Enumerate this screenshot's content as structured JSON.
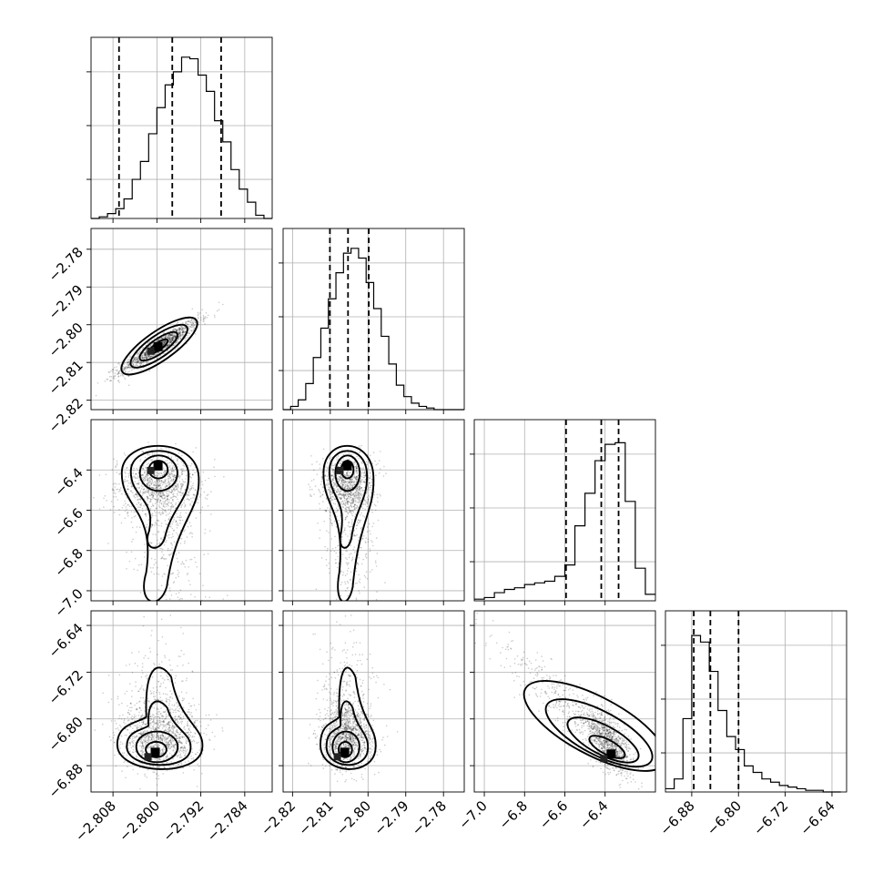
{
  "chart_data": {
    "type": "corner",
    "title": "",
    "parameters": [
      {
        "label": "",
        "range": [
          -2.812,
          -2.779
        ],
        "ticks": [
          -2.808,
          -2.8,
          -2.792,
          -2.784
        ],
        "tick_labels": [
          "−2.808",
          "−2.800",
          "−2.792",
          "−2.784"
        ],
        "quantiles": [
          -2.8069,
          -2.7972,
          -2.7883
        ],
        "hist_bins": [
          -2.812,
          -2.8105,
          -2.809,
          -2.8075,
          -2.806,
          -2.8045,
          -2.803,
          -2.8015,
          -2.8,
          -2.7985,
          -2.797,
          -2.7955,
          -2.794,
          -2.7925,
          -2.791,
          -2.7895,
          -2.788,
          -2.7865,
          -2.785,
          -2.7835,
          -2.782,
          -2.7805,
          -2.779
        ],
        "hist_counts": [
          0.0,
          0.01,
          0.03,
          0.06,
          0.12,
          0.24,
          0.35,
          0.52,
          0.68,
          0.82,
          0.9,
          0.99,
          0.98,
          0.88,
          0.78,
          0.6,
          0.47,
          0.3,
          0.18,
          0.1,
          0.02,
          0.0
        ]
      },
      {
        "label": "",
        "range": [
          -2.8225,
          -2.7745
        ],
        "ticks": [
          -2.82,
          -2.81,
          -2.8,
          -2.79,
          -2.78
        ],
        "tick_labels": [
          "−2.82",
          "−2.81",
          "−2.80",
          "−2.79",
          "−2.78"
        ],
        "quantiles": [
          -2.8101,
          -2.8053,
          -2.7998
        ],
        "hist_bins": [
          -2.8225,
          -2.8205,
          -2.8185,
          -2.8165,
          -2.8145,
          -2.8125,
          -2.8105,
          -2.8085,
          -2.8065,
          -2.8045,
          -2.8025,
          -2.8005,
          -2.7985,
          -2.7965,
          -2.7945,
          -2.7925,
          -2.7905,
          -2.7885,
          -2.7865,
          -2.7845,
          -2.7825,
          -2.7805,
          -2.7785,
          -2.7765,
          -2.7745
        ],
        "hist_counts": [
          0.0,
          0.02,
          0.06,
          0.16,
          0.32,
          0.5,
          0.68,
          0.84,
          0.96,
          0.99,
          0.93,
          0.78,
          0.62,
          0.45,
          0.28,
          0.15,
          0.08,
          0.04,
          0.02,
          0.01,
          0.0,
          0.0,
          0.0,
          0.0
        ]
      },
      {
        "label": "",
        "range": [
          -7.05,
          -6.15
        ],
        "ticks": [
          -7.0,
          -6.8,
          -6.6,
          -6.4
        ],
        "tick_labels": [
          "−7.0",
          "−6.8",
          "−6.6",
          "−6.4"
        ],
        "quantiles": [
          -6.594,
          -6.419,
          -6.333
        ],
        "hist_bins": [
          -7.05,
          -7.0,
          -6.95,
          -6.9,
          -6.85,
          -6.8,
          -6.75,
          -6.7,
          -6.65,
          -6.6,
          -6.55,
          -6.5,
          -6.45,
          -6.4,
          -6.35,
          -6.3,
          -6.25,
          -6.2,
          -6.15
        ],
        "hist_counts": [
          0.01,
          0.02,
          0.05,
          0.07,
          0.08,
          0.1,
          0.11,
          0.12,
          0.15,
          0.22,
          0.46,
          0.66,
          0.86,
          0.96,
          0.97,
          0.61,
          0.2,
          0.04
        ]
      },
      {
        "label": "",
        "range": [
          -6.925,
          -6.615
        ],
        "ticks": [
          -6.88,
          -6.8,
          -6.72,
          -6.64
        ],
        "tick_labels": [
          "−6.88",
          "−6.80",
          "−6.72",
          "−6.64"
        ],
        "quantiles": [
          -6.8765,
          -6.8481,
          -6.7999
        ],
        "hist_bins": [
          -6.925,
          -6.91,
          -6.895,
          -6.88,
          -6.865,
          -6.85,
          -6.835,
          -6.82,
          -6.805,
          -6.79,
          -6.775,
          -6.76,
          -6.745,
          -6.73,
          -6.715,
          -6.7,
          -6.685,
          -6.67,
          -6.655,
          -6.64,
          -6.625
        ],
        "hist_counts": [
          0.02,
          0.08,
          0.45,
          0.96,
          0.92,
          0.74,
          0.5,
          0.34,
          0.26,
          0.16,
          0.12,
          0.08,
          0.06,
          0.04,
          0.03,
          0.02,
          0.01,
          0.01,
          0.0,
          0.0
        ]
      }
    ],
    "pairs": [
      {
        "row": 1,
        "col": 0,
        "center": [
          -2.7995,
          -2.8056
        ],
        "sigma": [
          0.0036,
          0.0035
        ],
        "corr": 0.93,
        "skew": 0,
        "mode": [
          -2.7998,
          -2.8058
        ],
        "contour_levels": [
          0.5,
          1.0,
          1.5,
          2.0
        ]
      },
      {
        "row": 2,
        "col": 0,
        "center": [
          -2.7995,
          -6.47
        ],
        "sigma": [
          0.0036,
          0.16
        ],
        "corr": 0.0,
        "skew": 1,
        "mode": [
          -2.7998,
          -6.38
        ],
        "contour_levels": [
          0.5,
          1.0,
          1.5,
          2.0
        ]
      },
      {
        "row": 2,
        "col": 1,
        "center": [
          -2.8053,
          -6.47
        ],
        "sigma": [
          0.0034,
          0.16
        ],
        "corr": 0.0,
        "skew": 1,
        "mode": [
          -2.8055,
          -6.38
        ],
        "contour_levels": [
          0.5,
          1.0,
          1.5,
          2.0
        ]
      },
      {
        "row": 3,
        "col": 0,
        "center": [
          -2.7995,
          -6.834
        ],
        "sigma": [
          0.0036,
          0.035
        ],
        "corr": 0.1,
        "skew": 2,
        "mode": [
          -2.8003,
          -6.857
        ],
        "contour_levels": [
          0.5,
          1.0,
          1.5,
          2.0
        ]
      },
      {
        "row": 3,
        "col": 1,
        "center": [
          -2.8053,
          -6.834
        ],
        "sigma": [
          0.0034,
          0.035
        ],
        "corr": 0.1,
        "skew": 2,
        "mode": [
          -2.8062,
          -6.857
        ],
        "contour_levels": [
          0.5,
          1.0,
          1.5,
          2.0
        ]
      },
      {
        "row": 3,
        "col": 2,
        "center": [
          -6.47,
          -6.8
        ],
        "sigma": [
          0.16,
          0.045
        ],
        "corr": -0.9,
        "skew": 3,
        "mode": [
          -6.37,
          -6.86
        ],
        "contour_levels": [
          0.5,
          1.0,
          1.5,
          2.0
        ]
      }
    ],
    "grid": true,
    "colors": {
      "hist": "#000000",
      "contour": "#000000",
      "density": "#000000",
      "grid": "#b0b0b0"
    }
  }
}
